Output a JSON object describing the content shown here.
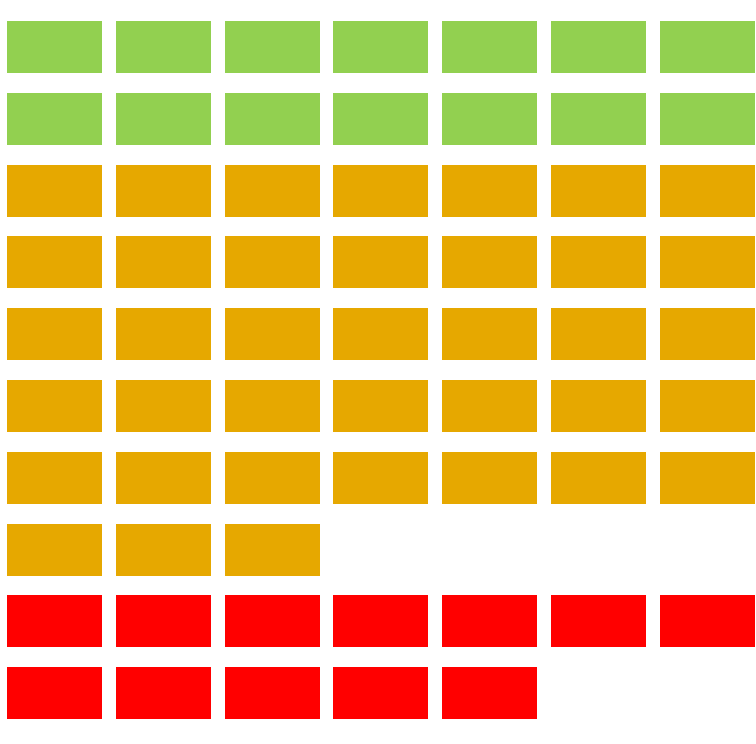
{
  "colors": {
    "green": "#92d050",
    "orange": "#e6a800",
    "red": "#ff0000",
    "background": "#ffffff"
  },
  "rows": [
    {
      "color": "green",
      "count": 7
    },
    {
      "color": "green",
      "count": 7
    },
    {
      "color": "orange",
      "count": 7
    },
    {
      "color": "orange",
      "count": 7
    },
    {
      "color": "orange",
      "count": 7
    },
    {
      "color": "orange",
      "count": 7
    },
    {
      "color": "orange",
      "count": 7
    },
    {
      "color": "orange",
      "count": 3
    },
    {
      "color": "red",
      "count": 7
    },
    {
      "color": "red",
      "count": 5
    }
  ]
}
